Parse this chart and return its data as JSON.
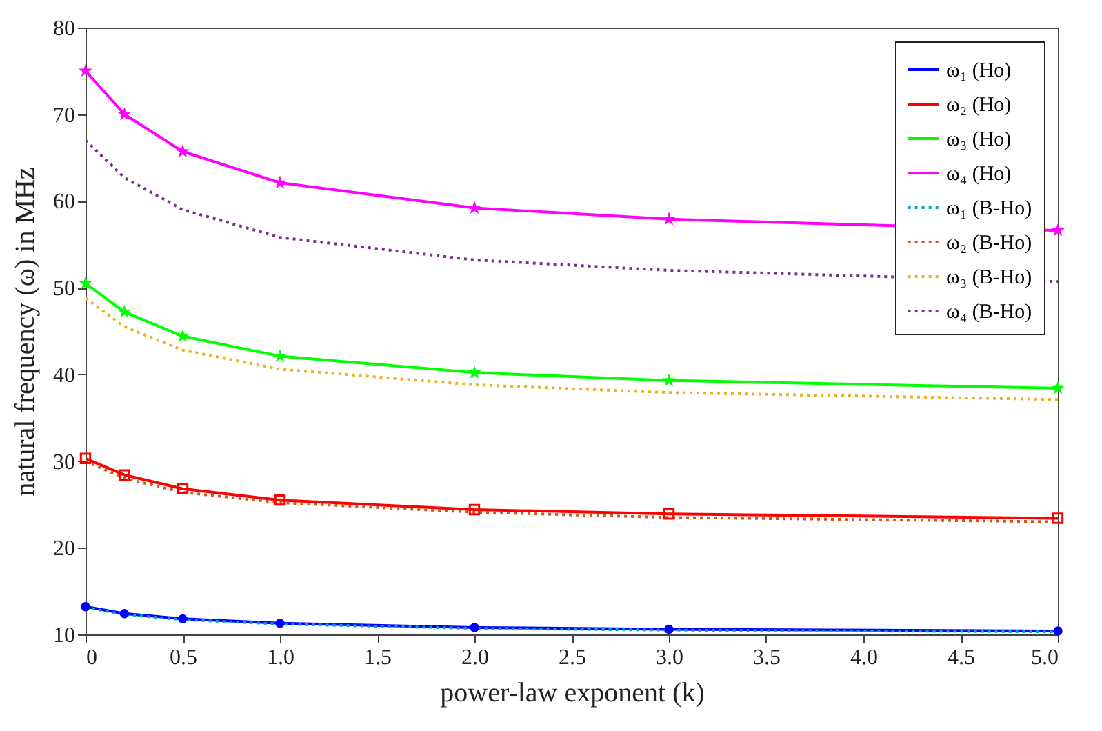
{
  "chart_data": {
    "type": "line",
    "xlabel": "power-law exponent (k)",
    "ylabel": "natural frequency (ω) in MHz",
    "x": [
      0,
      0.2,
      0.5,
      1,
      2,
      3,
      5
    ],
    "xlim": [
      0,
      5
    ],
    "xticks": [
      0,
      0.5,
      {
        "value": 1,
        "label": "1.0"
      },
      1.5,
      {
        "value": 2,
        "label": "2.0"
      },
      2.5,
      {
        "value": 3,
        "label": "3.0"
      },
      3.5,
      {
        "value": 4,
        "label": "4.0"
      },
      4.5,
      {
        "value": 5,
        "label": "5.0"
      }
    ],
    "ylim": [
      10,
      80
    ],
    "yticks": [
      10,
      20,
      30,
      40,
      50,
      60,
      70,
      80
    ],
    "grid": false,
    "legend": "top right",
    "series": [
      {
        "name": "ω₁ (Ho)",
        "color": "#0000ff",
        "marker": "circle",
        "line_style": "solid",
        "values": [
          13.2,
          12.4,
          11.8,
          11.3,
          10.8,
          10.6,
          10.4
        ]
      },
      {
        "name": "ω₂ (Ho)",
        "color": "#ff0000",
        "marker": "square",
        "line_style": "solid",
        "values": [
          30.3,
          28.4,
          26.8,
          25.5,
          24.4,
          23.9,
          23.4
        ]
      },
      {
        "name": "ω₃ (Ho)",
        "color": "#00ff00",
        "marker": "star",
        "line_style": "solid",
        "values": [
          50.5,
          47.2,
          44.4,
          42.1,
          40.2,
          39.3,
          38.4
        ]
      },
      {
        "name": "ω₄ (Ho)",
        "color": "#ff00ff",
        "marker": "star",
        "line_style": "solid",
        "values": [
          75,
          70,
          65.7,
          62.1,
          59.2,
          57.9,
          56.6
        ]
      },
      {
        "name": "ω₁ (B-Ho)",
        "color": "#00a6c8",
        "marker": "none",
        "line_style": "dotted",
        "values": [
          13.1,
          12.3,
          11.7,
          11.2,
          10.7,
          10.5,
          10.3
        ]
      },
      {
        "name": "ω₂ (B-Ho)",
        "color": "#d95319",
        "marker": "none",
        "line_style": "dotted",
        "values": [
          30,
          28,
          26.4,
          25.2,
          24.1,
          23.5,
          23.0
        ]
      },
      {
        "name": "ω₃ (B-Ho)",
        "color": "#edb120",
        "marker": "none",
        "line_style": "dotted",
        "values": [
          48.8,
          45.5,
          42.8,
          40.6,
          38.8,
          37.9,
          37.1
        ]
      },
      {
        "name": "ω₄ (B-Ho)",
        "color": "#7e2f8e",
        "marker": "none",
        "line_style": "dotted",
        "values": [
          67,
          62.7,
          59,
          55.8,
          53.2,
          52,
          50.7
        ]
      }
    ]
  }
}
